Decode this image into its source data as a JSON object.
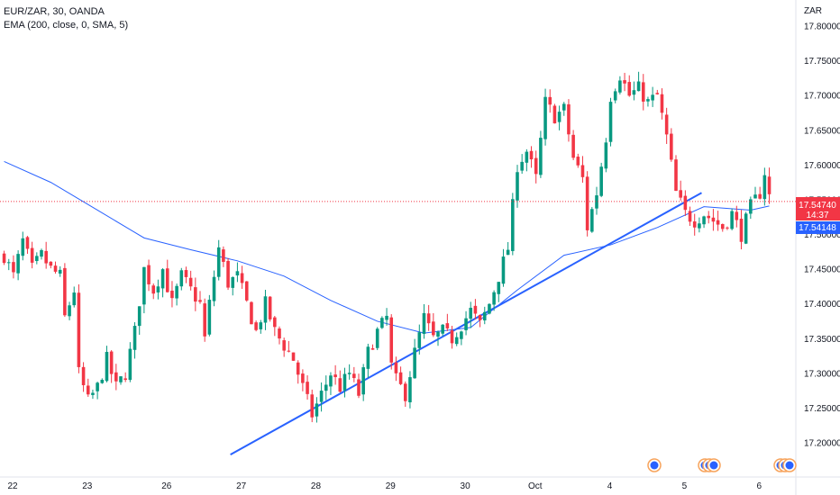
{
  "header": {
    "title": "EUR/ZAR, 30, OANDA",
    "indicator": "EMA (200, close, 0, SMA, 5)"
  },
  "colors": {
    "up": "#089981",
    "down": "#f23645",
    "ema": "#2962ff",
    "trendline": "#2962ff",
    "price_line": "#f23645"
  },
  "chart_data": {
    "type": "candlestick",
    "symbol": "EUR/ZAR",
    "interval": "30",
    "source": "OANDA",
    "currency": "ZAR",
    "x_ticks": [
      "22",
      "23",
      "26",
      "27",
      "28",
      "29",
      "30",
      "Oct",
      "4",
      "5",
      "6"
    ],
    "y_ticks": [
      "17.80000",
      "17.75000",
      "17.70000",
      "17.65000",
      "17.60000",
      "17.55000",
      "17.50000",
      "17.45000",
      "17.40000",
      "17.35000",
      "17.30000",
      "17.25000",
      "17.20000"
    ],
    "ylim": [
      17.16,
      17.81
    ],
    "last_price": {
      "value": "17.54740",
      "countdown": "14:37"
    },
    "ema_value": "17.54148",
    "series_path": [
      [
        0,
        17.47
      ],
      [
        2,
        17.44
      ],
      [
        4,
        17.49
      ],
      [
        6,
        17.45
      ],
      [
        8,
        17.47
      ],
      [
        10,
        17.45
      ],
      [
        12,
        17.44
      ],
      [
        13,
        17.38
      ],
      [
        15,
        17.42
      ],
      [
        16,
        17.3
      ],
      [
        18,
        17.26
      ],
      [
        20,
        17.28
      ],
      [
        22,
        17.32
      ],
      [
        24,
        17.28
      ],
      [
        26,
        17.3
      ],
      [
        28,
        17.36
      ],
      [
        30,
        17.45
      ],
      [
        32,
        17.42
      ],
      [
        34,
        17.45
      ],
      [
        36,
        17.4
      ],
      [
        38,
        17.44
      ],
      [
        40,
        17.42
      ],
      [
        42,
        17.4
      ],
      [
        43,
        17.35
      ],
      [
        44,
        17.4
      ],
      [
        46,
        17.48
      ],
      [
        48,
        17.43
      ],
      [
        50,
        17.44
      ],
      [
        52,
        17.4
      ],
      [
        54,
        17.36
      ],
      [
        56,
        17.4
      ],
      [
        58,
        17.36
      ],
      [
        60,
        17.34
      ],
      [
        62,
        17.32
      ],
      [
        64,
        17.28
      ],
      [
        66,
        17.24
      ],
      [
        68,
        17.27
      ],
      [
        70,
        17.3
      ],
      [
        72,
        17.28
      ],
      [
        74,
        17.3
      ],
      [
        76,
        17.27
      ],
      [
        78,
        17.33
      ],
      [
        80,
        17.36
      ],
      [
        82,
        17.38
      ],
      [
        83,
        17.31
      ],
      [
        84,
        17.29
      ],
      [
        86,
        17.27
      ],
      [
        88,
        17.33
      ],
      [
        90,
        17.38
      ],
      [
        92,
        17.35
      ],
      [
        94,
        17.36
      ],
      [
        96,
        17.35
      ],
      [
        98,
        17.37
      ],
      [
        100,
        17.39
      ],
      [
        102,
        17.37
      ],
      [
        104,
        17.4
      ],
      [
        106,
        17.44
      ],
      [
        108,
        17.48
      ],
      [
        110,
        17.6
      ],
      [
        112,
        17.62
      ],
      [
        114,
        17.58
      ],
      [
        116,
        17.69
      ],
      [
        118,
        17.67
      ],
      [
        120,
        17.68
      ],
      [
        122,
        17.61
      ],
      [
        124,
        17.58
      ],
      [
        125,
        17.51
      ],
      [
        127,
        17.56
      ],
      [
        129,
        17.64
      ],
      [
        130,
        17.7
      ],
      [
        132,
        17.73
      ],
      [
        134,
        17.7
      ],
      [
        136,
        17.71
      ],
      [
        138,
        17.69
      ],
      [
        140,
        17.7
      ],
      [
        142,
        17.64
      ],
      [
        144,
        17.56
      ],
      [
        146,
        17.53
      ],
      [
        148,
        17.52
      ],
      [
        150,
        17.53
      ],
      [
        152,
        17.52
      ],
      [
        154,
        17.51
      ],
      [
        156,
        17.53
      ],
      [
        158,
        17.5
      ],
      [
        160,
        17.54
      ],
      [
        162,
        17.56
      ],
      [
        163,
        17.59
      ],
      [
        164,
        17.555
      ]
    ],
    "ema_path": [
      [
        0,
        17.605
      ],
      [
        10,
        17.575
      ],
      [
        20,
        17.535
      ],
      [
        30,
        17.495
      ],
      [
        40,
        17.478
      ],
      [
        50,
        17.462
      ],
      [
        60,
        17.44
      ],
      [
        70,
        17.405
      ],
      [
        80,
        17.375
      ],
      [
        90,
        17.358
      ],
      [
        100,
        17.366
      ],
      [
        110,
        17.42
      ],
      [
        120,
        17.47
      ],
      [
        130,
        17.485
      ],
      [
        140,
        17.51
      ],
      [
        150,
        17.54
      ],
      [
        160,
        17.535
      ],
      [
        164,
        17.541
      ]
    ],
    "trendline": {
      "start": [
        49,
        17.183
      ],
      "end": [
        150,
        17.56
      ]
    },
    "event_markers": [
      {
        "group": 1,
        "count": 1
      },
      {
        "group": 2,
        "count": 3
      },
      {
        "group": 3,
        "count": 3
      }
    ]
  }
}
